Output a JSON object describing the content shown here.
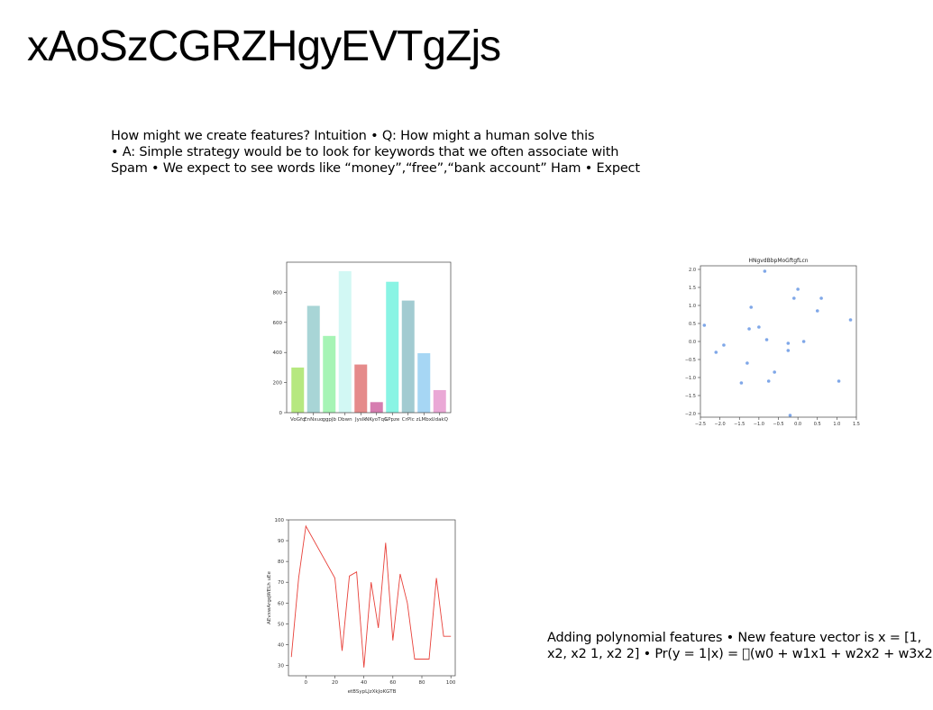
{
  "title": "xAoSzCGRZHgyEVTgZjs",
  "text_blocks": [
    {
      "lines": [
        "How might we create features? Intuition • Q: How might a human solve this",
        "• A: Simple strategy would be to look for keywords that we often associate with",
        "Spam • We expect to see words like “money”,“free”,“bank account” Ham • Expect"
      ]
    },
    {
      "lines": [
        "Adding polynomial features • New feature vector is x = [1,",
        "x2, x2 1, x2 2] • Pr(y = 1|x) = \u0000(w0 + w1x1 + w2x2 + w3x2"
      ]
    }
  ],
  "chart_data": [
    {
      "type": "bar",
      "title": "",
      "xlabel": "",
      "ylabel": "",
      "categories": [
        "VoGfq",
        "EnNxuo",
        "ggpJb",
        "Dbwn",
        "Jyslk",
        "NKyoTqG",
        "LPpze",
        "CrPlc",
        "zLMbx",
        "UdakQ"
      ],
      "values": [
        300,
        710,
        510,
        940,
        320,
        70,
        870,
        745,
        395,
        150
      ],
      "colors": [
        "#b6e880",
        "#a8d5d6",
        "#a6f4b5",
        "#d2f8f4",
        "#e58b8b",
        "#d67db0",
        "#89f4e4",
        "#a2cbd1",
        "#a6d6f4",
        "#eaa8d6"
      ],
      "ylim": [
        0,
        1000
      ],
      "yticks": [
        0,
        200,
        400,
        600,
        800
      ]
    },
    {
      "type": "scatter",
      "title": "HNgvdBbpMoGftgfLcn",
      "xlabel": "",
      "ylabel": "",
      "x": [
        -2.4,
        -2.1,
        -1.9,
        -1.45,
        -1.3,
        -1.25,
        -1.2,
        -1.0,
        -0.85,
        -0.8,
        -0.75,
        -0.6,
        -0.25,
        -0.25,
        -0.2,
        -0.1,
        0.0,
        0.15,
        0.5,
        0.6,
        1.05,
        1.35
      ],
      "y": [
        0.45,
        -0.3,
        -0.1,
        -1.15,
        -0.6,
        0.35,
        0.95,
        0.4,
        1.95,
        0.05,
        -1.1,
        -0.85,
        -0.25,
        -0.05,
        -2.05,
        1.2,
        1.45,
        0.0,
        0.85,
        1.2,
        -1.1,
        0.6
      ],
      "color": "#7fa7e8",
      "xlim": [
        -2.5,
        1.5
      ],
      "ylim": [
        -2.1,
        2.1
      ],
      "xticks": [
        -2.5,
        -2.0,
        -1.5,
        -1.0,
        -0.5,
        0.0,
        0.5,
        1.0,
        1.5
      ],
      "yticks": [
        -2.0,
        -1.5,
        -1.0,
        -0.5,
        0.0,
        0.5,
        1.0,
        1.5,
        2.0
      ]
    },
    {
      "type": "line",
      "title": "",
      "xlabel": "etBSypLJzXkJoKGTB",
      "ylabel": "AEvxwArgqWELh uEe",
      "x": [
        -10,
        -5,
        0,
        20,
        25,
        30,
        35,
        40,
        45,
        50,
        55,
        60,
        65,
        70,
        75,
        80,
        85,
        90,
        95,
        100
      ],
      "y": [
        34,
        72,
        97,
        72,
        37,
        73,
        75,
        29,
        70,
        48,
        89,
        42,
        74,
        60,
        33,
        33,
        33,
        72,
        44,
        44
      ],
      "color": "#e8413a",
      "xlim": [
        -12,
        103
      ],
      "ylim": [
        25,
        100
      ],
      "xticks": [
        0,
        20,
        40,
        60,
        80,
        100
      ],
      "yticks": [
        30,
        40,
        50,
        60,
        70,
        80,
        90,
        100
      ]
    }
  ]
}
